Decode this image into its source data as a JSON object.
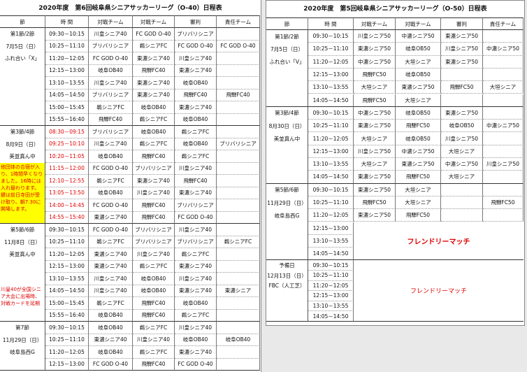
{
  "tables": [
    {
      "title": "2020年度　第6回岐阜県シニアサッカーリーグ（O-40）日程表",
      "header": [
        "節",
        "時 間",
        "対戦チーム",
        "対戦チーム",
        "審判",
        "責任チーム"
      ],
      "blocks": [
        {
          "labels": [
            "第1節/2節",
            "7月5日（日）",
            "ふれ合い「X」"
          ],
          "rows": [
            {
              "time": "09:30－10:15",
              "team1": "川皇シニア40",
              "team2": "FC GOD O-40",
              "referee": "ブリバリシニア"
            },
            {
              "time": "10:25－11:10",
              "team1": "ブリバリシニア",
              "team2": "鵜シニアFC",
              "referee": "FC GOD O-40",
              "responsible": "FC GOD O-40"
            },
            {
              "time": "11:20－12:05",
              "team1": "FC GOD O-40",
              "team2": "東濃シニア40",
              "referee": "川皇シニア40"
            },
            {
              "time": "12:15－13:00",
              "team1": "岐阜OB40",
              "team2": "飛騨FC40",
              "referee": "東濃シニア40"
            },
            {
              "time": "13:10－13:55",
              "team1": "川皇シニア40",
              "team2": "東濃シニア40",
              "referee": "岐阜OB40"
            },
            {
              "time": "14:05－14:50",
              "team1": "ブリバリシニア",
              "team2": "東濃シニア40",
              "referee": "飛騨FC40",
              "responsible": "飛騨FC40"
            },
            {
              "time": "15:00－15:45",
              "team1": "鵜シニアFC",
              "team2": "岐阜OB40",
              "referee": "東濃シニア40"
            },
            {
              "time": "15:55－16:40",
              "team1": "飛騨FC40",
              "team2": "鵜シニアFC",
              "referee": "岐阜OB40"
            }
          ]
        },
        {
          "labels": [
            "第3節/4節",
            "8月9日（日）",
            "美並真ん中"
          ],
          "note": "他団体の合宿が入り、1時間早くなりました。16時には入れ替わります。鍵は前日寺田が受け取り、朝7:30に開場します。",
          "note_style": "yellow",
          "rows": [
            {
              "time": "08:30－09:15",
              "alert": true,
              "team1": "ブリバリシニア",
              "team2": "岐阜OB40",
              "referee": "鵜シニアFC"
            },
            {
              "time": "09:25－10:10",
              "alert": true,
              "team1": "川皇シニア40",
              "team2": "鵜シニアFC",
              "referee": "岐阜OB40",
              "responsible": "ブリバリシニア"
            },
            {
              "time": "10:20－11:05",
              "alert": true,
              "team1": "岐阜OB40",
              "team2": "飛騨FC40",
              "referee": "鵜シニアFC"
            },
            {
              "time": "11:15－12:00",
              "alert": true,
              "team1": "FC GOD O-40",
              "team2": "ブリバリシニア",
              "referee": "川皇シニア40"
            },
            {
              "time": "12:10－12:55",
              "alert": true,
              "team1": "鵜シニアFC",
              "team2": "東濃シニア40",
              "referee": "飛騨FC40"
            },
            {
              "time": "13:05－13:50",
              "alert": true,
              "team1": "岐阜OB40",
              "team2": "川皇シニア40",
              "referee": "東濃シニア40"
            },
            {
              "time": "14:00－14:45",
              "alert": true,
              "team1": "FC GOD O-40",
              "team2": "飛騨FC40",
              "referee": "ブリバリシニア"
            },
            {
              "time": "14:55－15:40",
              "alert": true,
              "team1": "東濃シニア40",
              "team2": "飛騨FC40",
              "referee": "FC GOD O-40"
            }
          ]
        },
        {
          "labels": [
            "第5節/6節",
            "11月8日（日）",
            "美並真ん中"
          ],
          "note": "川皇40が全国シニア大会に出場時、対戦カードを延期",
          "note_style": "red",
          "rows": [
            {
              "time": "09:30－10:15",
              "team1": "FC GOD O-40",
              "team2": "ブリバリシニア",
              "referee": "川皇シニア40"
            },
            {
              "time": "10:25－11:10",
              "team1": "鵜シニアFC",
              "team2": "ブリバリシニア",
              "referee": "ブリバリシニア",
              "responsible": "鵜シニアFC"
            },
            {
              "time": "11:20－12:05",
              "team1": "東濃シニア40",
              "team2": "川皇シニア40",
              "referee": "鵜シニアFC"
            },
            {
              "time": "12:15－13:00",
              "team1": "東濃シニア40",
              "team2": "鵜シニアFC",
              "referee": "東濃シニア40"
            },
            {
              "time": "13:10－13:55",
              "team1": "川皇シニア40",
              "team2": "岐阜OB40",
              "referee": "川皇シニア40"
            },
            {
              "time": "14:05－14:50",
              "team1": "川皇シニア40",
              "team2": "岐阜OB40",
              "referee": "東濃シニア40",
              "responsible": "東濃シニア"
            },
            {
              "time": "15:00－15:45",
              "team1": "鵜シニアFC",
              "team2": "飛騨FC40",
              "referee": "岐阜OB40"
            },
            {
              "time": "15:55－16:40",
              "team1": "岐阜OB40",
              "team2": "飛騨FC40",
              "referee": "鵜シニアFC"
            }
          ]
        },
        {
          "labels": [
            "第7節",
            "11月29日（日）",
            "岐阜島西G"
          ],
          "rows": [
            {
              "time": "09:30－10:15",
              "team1": "岐阜OB40",
              "team2": "鵜シニアFC",
              "referee": "川皇シニア40"
            },
            {
              "time": "10:25－11:10",
              "team1": "東濃シニア40",
              "team2": "川皇シニア40",
              "referee": "岐阜OB40",
              "responsible": "岐阜OB40"
            },
            {
              "time": "11:20－12:05",
              "team1": "岐阜OB40",
              "team2": "鵜シニアFC",
              "referee": "東濃シニア40"
            },
            {
              "time": "12:15－13:00",
              "team1": "FC GOD O-40",
              "team2": "飛騨FC40",
              "referee": "FC GOD O-40"
            }
          ]
        }
      ]
    },
    {
      "title": "2020年度　第5回岐阜県シニアサッカーリーグ（O-50）日程表",
      "header": [
        "節",
        "時 間",
        "対戦チーム",
        "対戦チーム",
        "審判",
        "責任チーム"
      ],
      "blocks": [
        {
          "labels": [
            "第1節/2節",
            "7月5日（日）",
            "ふれ合い「V」"
          ],
          "rows": [
            {
              "time": "09:30－10:15",
              "team1": "川皇シニア50",
              "team2": "中濃シニア50",
              "referee": "東濃シニア50"
            },
            {
              "time": "10:25－11:10",
              "team1": "東濃シニア50",
              "team2": "岐阜OB50",
              "referee": "川皇シニア50",
              "responsible": "中濃シニア50"
            },
            {
              "time": "11:20－12:05",
              "team1": "中濃シニア50",
              "team2": "大垣シニア",
              "referee": "東濃シニア50"
            },
            {
              "time": "12:15－13:00",
              "team1": "飛騨FC50",
              "team2": "岐阜OB50"
            },
            {
              "time": "13:10－13:55",
              "team1": "大垣シニア",
              "team2": "東濃シニア50",
              "referee": "飛騨FC50",
              "responsible": "大垣シニア"
            },
            {
              "time": "14:05－14:50",
              "team1": "飛騨FC50",
              "team2": "大垣シニア"
            }
          ]
        },
        {
          "labels": [
            "第3節/4節",
            "8月30日（日）",
            "美並真ん中"
          ],
          "rows": [
            {
              "time": "09:30－10:15",
              "team1": "中濃シニア50",
              "team2": "岐阜OB50",
              "referee": "東濃シニア50"
            },
            {
              "time": "10:25－11:10",
              "team1": "東濃シニア50",
              "team2": "飛騨FC50",
              "referee": "岐阜OB50",
              "responsible": "中濃シニア50"
            },
            {
              "time": "11:20－12:05",
              "team1": "大垣シニア",
              "team2": "岐阜OB50",
              "referee": "川皇シニア50"
            },
            {
              "time": "12:15－13:00",
              "team1": "川皇シニア50",
              "team2": "中濃シニア50",
              "referee": "大垣シニア"
            },
            {
              "time": "13:10－13:55",
              "team1": "大垣シニア",
              "team2": "東濃シニア50",
              "referee": "中濃シニア50",
              "responsible": "川皇シニア50"
            },
            {
              "time": "14:05－14:50",
              "team1": "東濃シニア50",
              "team2": "飛騨FC50",
              "referee": "大垣シニア"
            }
          ]
        },
        {
          "labels": [
            "第5節/6節",
            "11月29日（日）",
            "岐阜島西G"
          ],
          "friendly": "フレンドリーマッチ",
          "friendly_style": "bold",
          "rows": [
            {
              "time": "09:30－10:15",
              "team1": "東濃シニア50",
              "team2": "大垣シニア"
            },
            {
              "time": "10:25－11:10",
              "team1": "飛騨FC50",
              "team2": "大垣シニア",
              "responsible": "飛騨FC50"
            },
            {
              "time": "11:20－12:05",
              "team1": "東濃シニア50",
              "team2": "飛騨FC50"
            },
            {
              "time": "12:15－13:00"
            },
            {
              "time": "13:10－13:55"
            },
            {
              "time": "14:05－14:50"
            }
          ]
        },
        {
          "labels": [
            "予備日",
            "12月13日（日）",
            "FBC（人工芝）"
          ],
          "friendly": "フレンドリーマッチ",
          "friendly_style": "normal",
          "rows": [
            {
              "time": "09:30－10:15"
            },
            {
              "time": "10:25－11:10"
            },
            {
              "time": "11:20－12:05"
            },
            {
              "time": "12:15－13:00"
            },
            {
              "time": "13:10－13:55"
            },
            {
              "time": "14:05－14:50"
            }
          ]
        }
      ]
    }
  ]
}
